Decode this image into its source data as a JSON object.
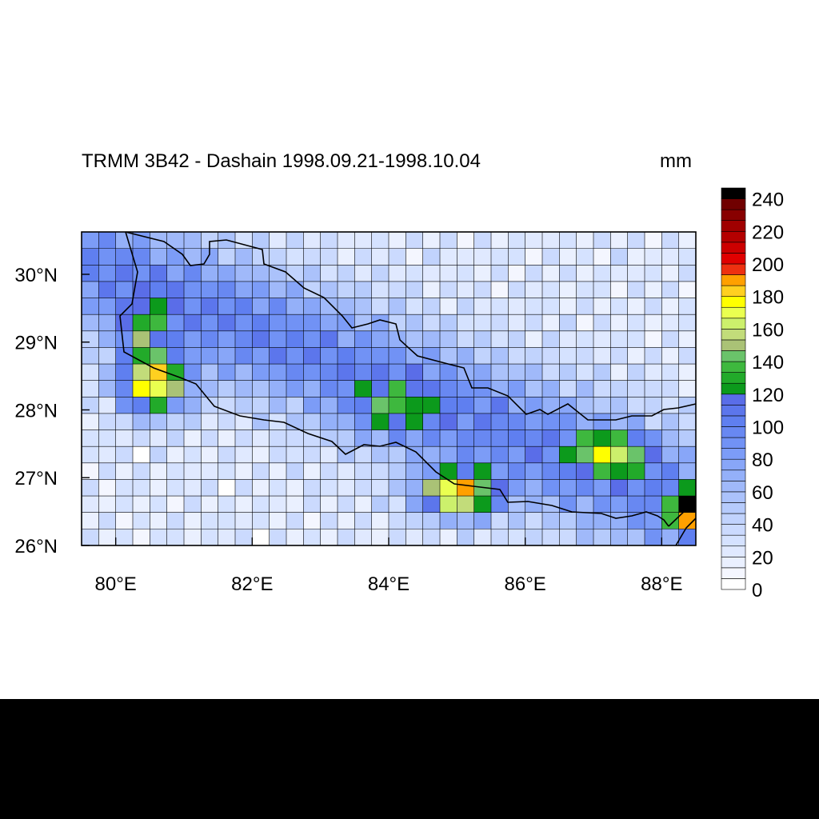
{
  "title": "TRMM 3B42 - Dashain 1998.09.21-1998.10.04",
  "units": "mm",
  "map": {
    "lon_range": [
      79.5,
      88.5
    ],
    "lat_range": [
      26.0,
      30.625
    ],
    "cell_deg": 0.25,
    "x_ticks": [
      "80°E",
      "82°E",
      "84°E",
      "86°E",
      "88°E"
    ],
    "y_ticks": [
      "30°N",
      "29°N",
      "28°N",
      "27°N",
      "26°N"
    ],
    "x_tick_values": [
      80,
      82,
      84,
      86,
      88
    ],
    "y_tick_values": [
      30,
      29,
      28,
      27,
      26
    ]
  },
  "colorbar": {
    "labels": [
      "240",
      "220",
      "200",
      "180",
      "160",
      "140",
      "120",
      "100",
      "80",
      "60",
      "40",
      "20",
      "0"
    ],
    "label_values": [
      240,
      220,
      200,
      180,
      160,
      140,
      120,
      100,
      80,
      60,
      40,
      20,
      0
    ],
    "colors": [
      "#ffffff",
      "#f4f6ff",
      "#eaf0ff",
      "#e0e9ff",
      "#d5e2ff",
      "#cbdafe",
      "#c1d3fd",
      "#b6cbfc",
      "#abc2fb",
      "#a0b9fa",
      "#94b0f9",
      "#88a6f8",
      "#7c9cf7",
      "#7192f5",
      "#6888f2",
      "#5f7ff0",
      "#5c76ec",
      "#5a6de8",
      "#0c9a1c",
      "#22aa2a",
      "#3eb83e",
      "#6ac36a",
      "#aac276",
      "#c2dc7a",
      "#ccf06c",
      "#eaff50",
      "#ffff00",
      "#ffd020",
      "#ffa000",
      "#ee3010",
      "#e00000",
      "#cc0000",
      "#b40000",
      "#a00000",
      "#880000",
      "#700000",
      "#000000"
    ],
    "level_step": 6.667
  }
}
